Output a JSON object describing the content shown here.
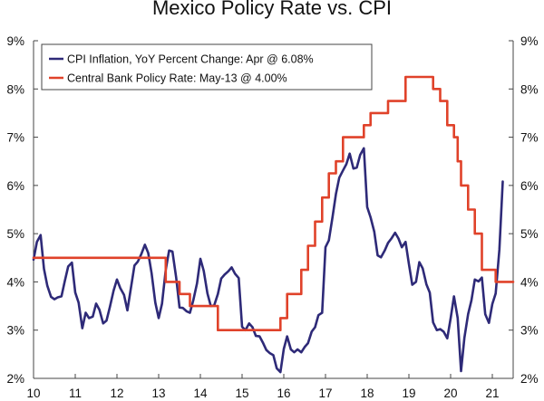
{
  "chart_data": {
    "type": "line",
    "title": "Mexico Policy Rate vs. CPI",
    "xlabel": "",
    "ylabel": "",
    "xlim": [
      2010.0,
      2021.5
    ],
    "ylim": [
      2,
      9
    ],
    "x_ticks": [
      2010,
      2011,
      2012,
      2013,
      2014,
      2015,
      2016,
      2017,
      2018,
      2019,
      2020,
      2021
    ],
    "x_tick_labels": [
      "10",
      "11",
      "12",
      "13",
      "14",
      "15",
      "16",
      "17",
      "18",
      "19",
      "20",
      "21"
    ],
    "y_ticks": [
      2,
      3,
      4,
      5,
      6,
      7,
      8,
      9
    ],
    "y_tick_labels": [
      "2%",
      "3%",
      "4%",
      "5%",
      "6%",
      "7%",
      "8%",
      "9%"
    ],
    "legend_position": "top-left",
    "series": [
      {
        "name": "CPI Inflation, YoY Percent Change: Apr @ 6.08%",
        "color": "#2E2A78",
        "x": [
          2010.0,
          2010.08,
          2010.17,
          2010.25,
          2010.33,
          2010.42,
          2010.5,
          2010.58,
          2010.67,
          2010.75,
          2010.83,
          2010.92,
          2011.0,
          2011.08,
          2011.17,
          2011.25,
          2011.33,
          2011.42,
          2011.5,
          2011.58,
          2011.67,
          2011.75,
          2011.83,
          2011.92,
          2012.0,
          2012.08,
          2012.17,
          2012.25,
          2012.33,
          2012.42,
          2012.5,
          2012.58,
          2012.67,
          2012.75,
          2012.83,
          2012.92,
          2013.0,
          2013.08,
          2013.17,
          2013.25,
          2013.33,
          2013.42,
          2013.5,
          2013.58,
          2013.67,
          2013.75,
          2013.83,
          2013.92,
          2014.0,
          2014.08,
          2014.17,
          2014.25,
          2014.33,
          2014.42,
          2014.5,
          2014.58,
          2014.67,
          2014.75,
          2014.83,
          2014.92,
          2015.0,
          2015.08,
          2015.17,
          2015.25,
          2015.33,
          2015.42,
          2015.5,
          2015.58,
          2015.67,
          2015.75,
          2015.83,
          2015.92,
          2016.0,
          2016.08,
          2016.17,
          2016.25,
          2016.33,
          2016.42,
          2016.5,
          2016.58,
          2016.67,
          2016.75,
          2016.83,
          2016.92,
          2017.0,
          2017.08,
          2017.17,
          2017.25,
          2017.33,
          2017.42,
          2017.5,
          2017.58,
          2017.67,
          2017.75,
          2017.83,
          2017.92,
          2018.0,
          2018.08,
          2018.17,
          2018.25,
          2018.33,
          2018.42,
          2018.5,
          2018.58,
          2018.67,
          2018.75,
          2018.83,
          2018.92,
          2019.0,
          2019.08,
          2019.17,
          2019.25,
          2019.33,
          2019.42,
          2019.5,
          2019.58,
          2019.67,
          2019.75,
          2019.83,
          2019.92,
          2020.0,
          2020.08,
          2020.17,
          2020.25,
          2020.33,
          2020.42,
          2020.5,
          2020.58,
          2020.67,
          2020.75,
          2020.83,
          2020.92,
          2021.0,
          2021.08,
          2021.17,
          2021.25
        ],
        "values": [
          4.46,
          4.83,
          4.97,
          4.27,
          3.92,
          3.69,
          3.64,
          3.68,
          3.7,
          4.02,
          4.32,
          4.4,
          3.78,
          3.57,
          3.04,
          3.36,
          3.25,
          3.28,
          3.55,
          3.42,
          3.14,
          3.2,
          3.48,
          3.82,
          4.05,
          3.87,
          3.73,
          3.41,
          3.85,
          4.34,
          4.42,
          4.57,
          4.77,
          4.6,
          4.18,
          3.57,
          3.25,
          3.55,
          4.25,
          4.65,
          4.63,
          4.09,
          3.47,
          3.46,
          3.39,
          3.36,
          3.62,
          3.97,
          4.48,
          4.23,
          3.76,
          3.5,
          3.51,
          3.75,
          4.07,
          4.15,
          4.22,
          4.3,
          4.17,
          4.08,
          3.07,
          3.0,
          3.14,
          3.06,
          2.88,
          2.87,
          2.74,
          2.59,
          2.52,
          2.48,
          2.21,
          2.13,
          2.61,
          2.87,
          2.6,
          2.54,
          2.6,
          2.54,
          2.65,
          2.73,
          2.97,
          3.06,
          3.31,
          3.36,
          4.72,
          4.86,
          5.35,
          5.82,
          6.16,
          6.31,
          6.44,
          6.66,
          6.35,
          6.37,
          6.63,
          6.77,
          5.55,
          5.34,
          5.04,
          4.55,
          4.51,
          4.65,
          4.81,
          4.9,
          5.02,
          4.9,
          4.72,
          4.83,
          4.37,
          3.94,
          4.0,
          4.41,
          4.28,
          3.95,
          3.78,
          3.16,
          3.0,
          3.02,
          2.97,
          2.83,
          3.24,
          3.7,
          3.25,
          2.15,
          2.84,
          3.33,
          3.62,
          4.05,
          4.01,
          4.09,
          3.33,
          3.15,
          3.54,
          3.76,
          4.67,
          6.08
        ]
      },
      {
        "name": "Central Bank Policy Rate: May-13 @ 4.00%",
        "color": "#E0422A",
        "step": true,
        "x": [
          2010.0,
          2013.17,
          2013.5,
          2013.75,
          2014.42,
          2015.92,
          2016.08,
          2016.42,
          2016.58,
          2016.75,
          2016.92,
          2017.08,
          2017.25,
          2017.42,
          2017.92,
          2018.08,
          2018.5,
          2018.92,
          2019.58,
          2019.75,
          2019.92,
          2020.08,
          2020.17,
          2020.25,
          2020.42,
          2020.58,
          2020.75,
          2021.08,
          2021.17,
          2021.5
        ],
        "values": [
          4.5,
          4.0,
          3.75,
          3.5,
          3.0,
          3.25,
          3.75,
          4.25,
          4.75,
          5.25,
          5.75,
          6.25,
          6.5,
          7.0,
          7.25,
          7.5,
          7.75,
          8.25,
          8.0,
          7.75,
          7.25,
          7.0,
          6.5,
          6.0,
          5.5,
          5.0,
          4.25,
          4.0,
          4.0,
          4.0
        ]
      }
    ]
  }
}
